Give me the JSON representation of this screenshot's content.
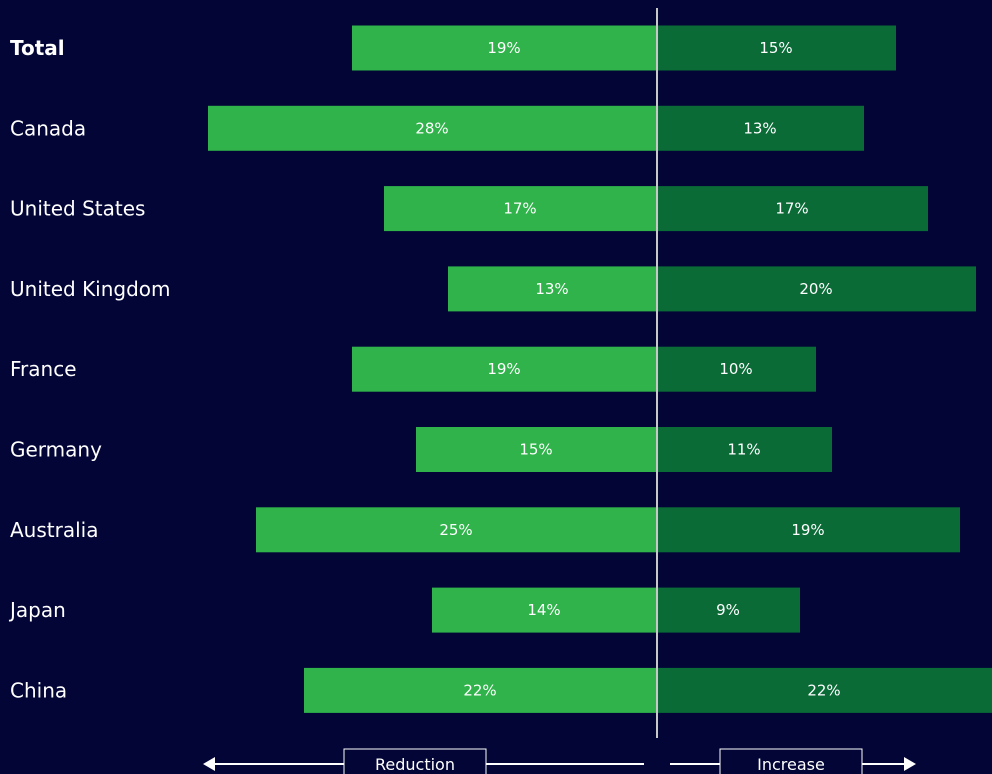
{
  "chart_data": {
    "type": "bar",
    "orientation": "horizontal-diverging",
    "categories": [
      "Total",
      "Canada",
      "United States",
      "United Kingdom",
      "France",
      "Germany",
      "Australia",
      "Japan",
      "China"
    ],
    "series": [
      {
        "name": "Reduction",
        "values": [
          19,
          28,
          17,
          13,
          19,
          15,
          25,
          14,
          22
        ],
        "labels": [
          "19%",
          "28%",
          "17%",
          "13%",
          "19%",
          "15%",
          "25%",
          "14%",
          "22%"
        ],
        "color": "#2fb34a"
      },
      {
        "name": "Increase",
        "values": [
          15,
          13,
          17,
          20,
          10,
          11,
          19,
          9,
          22
        ],
        "labels": [
          "15%",
          "13%",
          "17%",
          "20%",
          "10%",
          "11%",
          "19%",
          "9%",
          "22%"
        ],
        "color": "#0a6b37"
      }
    ],
    "bold_category": "Total",
    "unit": "%",
    "grid": false
  },
  "legend": {
    "reduction_label": "Reduction",
    "increase_label": "Increase"
  },
  "colors": {
    "background": "#020536",
    "reduction": "#2fb34a",
    "increase": "#0a6b37",
    "divider": "#c8c8c8",
    "text": "#ffffff"
  }
}
